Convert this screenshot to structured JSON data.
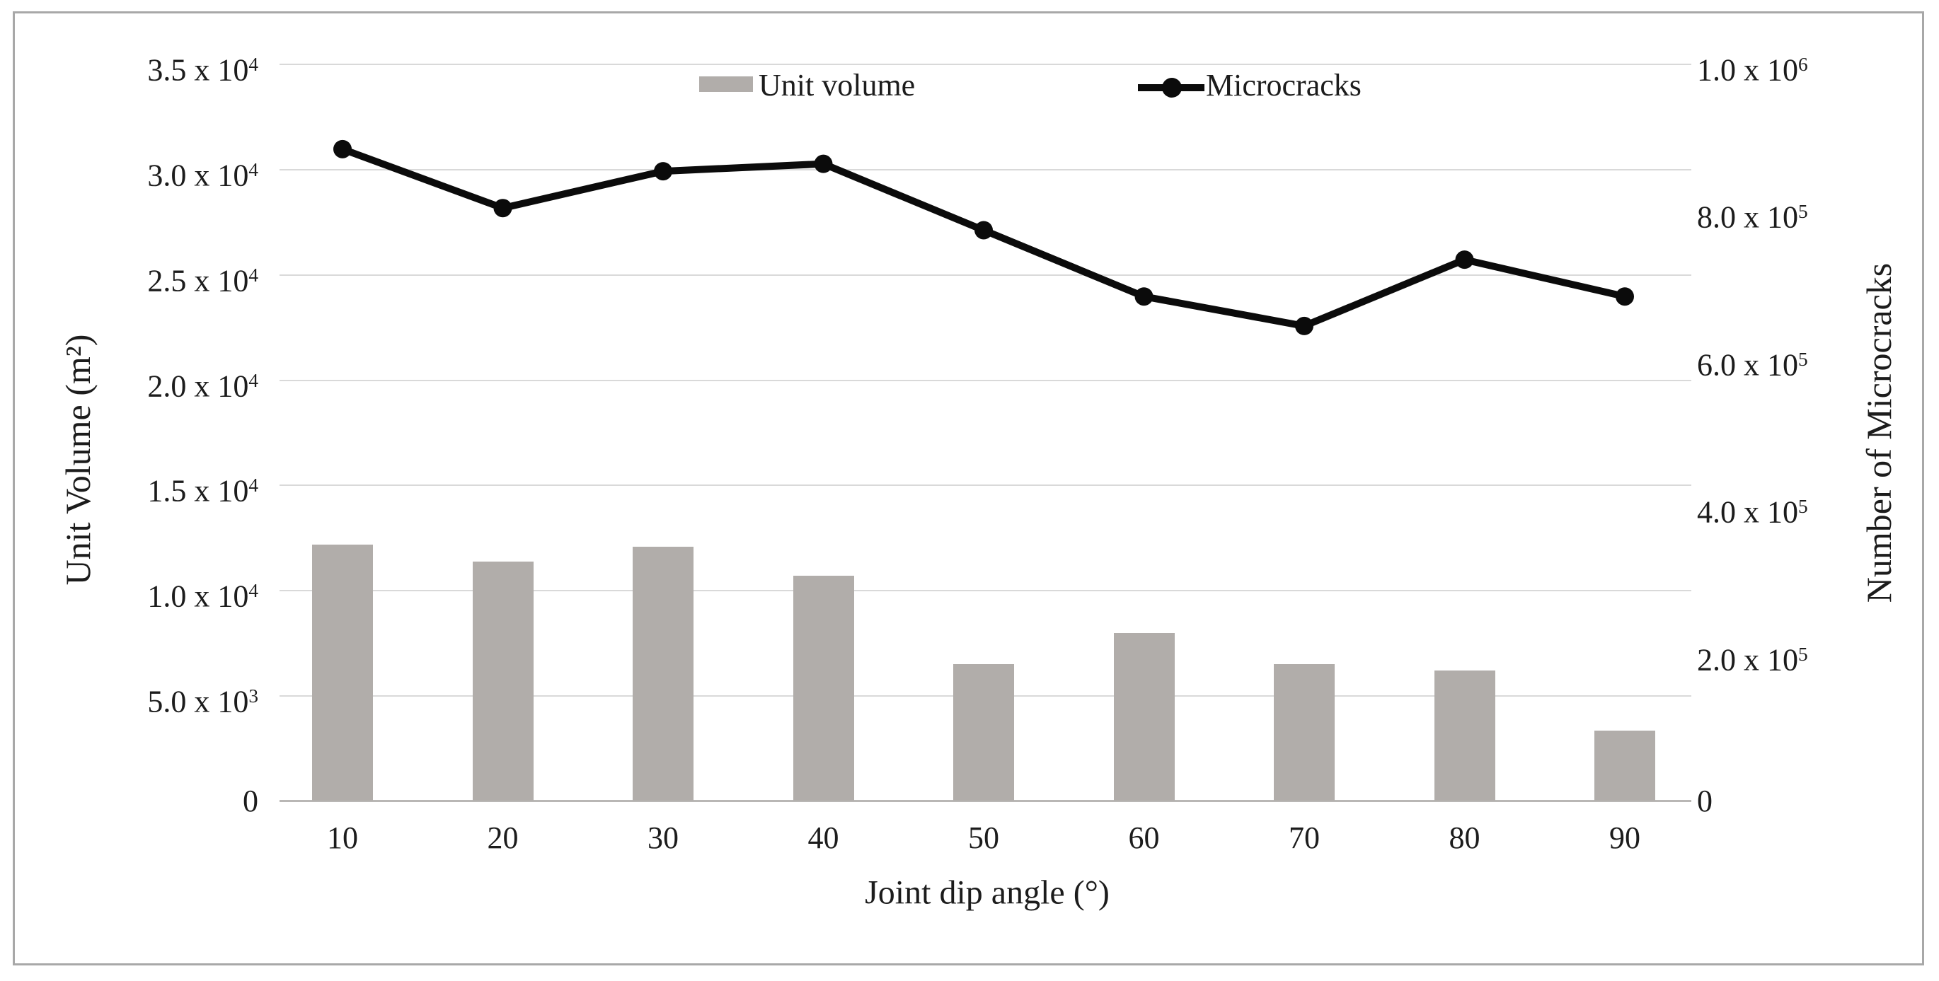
{
  "chart_data": {
    "type": "combo",
    "categories": [
      "10",
      "20",
      "30",
      "40",
      "50",
      "60",
      "70",
      "80",
      "90"
    ],
    "xlabel": "Joint dip angle (°)",
    "ylabel_left": "Unit Volume (m²)",
    "ylabel_right": "Number of Microcracks",
    "grid": true,
    "legend_position": "top-center",
    "left_axis": {
      "min": 0,
      "max": 35000,
      "ticks": [
        {
          "base": "3.5 x 10",
          "sup": "4",
          "value": 35000
        },
        {
          "base": "3.0 x 10",
          "sup": "4",
          "value": 30000
        },
        {
          "base": "2.5 x 10",
          "sup": "4",
          "value": 25000
        },
        {
          "base": "2.0 x 10",
          "sup": "4",
          "value": 20000
        },
        {
          "base": "1.5 x 10",
          "sup": "4",
          "value": 15000
        },
        {
          "base": "1.0 x 10",
          "sup": "4",
          "value": 10000
        },
        {
          "base": "5.0 x 10",
          "sup": "3",
          "value": 5000
        },
        {
          "base": "0",
          "sup": "",
          "value": 0
        }
      ]
    },
    "right_axis": {
      "min": 0,
      "max": 1000000,
      "ticks": [
        {
          "base": "1.0 x 10",
          "sup": "6",
          "value": 1000000
        },
        {
          "base": "8.0 x 10",
          "sup": "5",
          "value": 800000
        },
        {
          "base": "6.0 x 10",
          "sup": "5",
          "value": 600000
        },
        {
          "base": "4.0 x 10",
          "sup": "5",
          "value": 400000
        },
        {
          "base": "2.0 x 10",
          "sup": "5",
          "value": 200000
        },
        {
          "base": "0",
          "sup": "",
          "value": 0
        }
      ]
    },
    "series": [
      {
        "name": "Unit volume",
        "type": "bar",
        "axis": "left",
        "color": "#b1adaa",
        "values": [
          12200,
          11400,
          12100,
          10700,
          6500,
          8000,
          6500,
          6200,
          3350
        ]
      },
      {
        "name": "Microcracks",
        "type": "line",
        "axis": "right",
        "color": "#0b0b0b",
        "values": [
          885000,
          805000,
          855000,
          865000,
          775000,
          685000,
          645000,
          735000,
          685000
        ]
      }
    ]
  },
  "colors": {
    "background": "#ffffff",
    "frame_border": "#a8a8a8",
    "gridline": "#d9d9d9",
    "baseline": "#b9b7b5",
    "text": "#1c1c1c",
    "bar": "#b1adaa",
    "line": "#0b0b0b"
  }
}
